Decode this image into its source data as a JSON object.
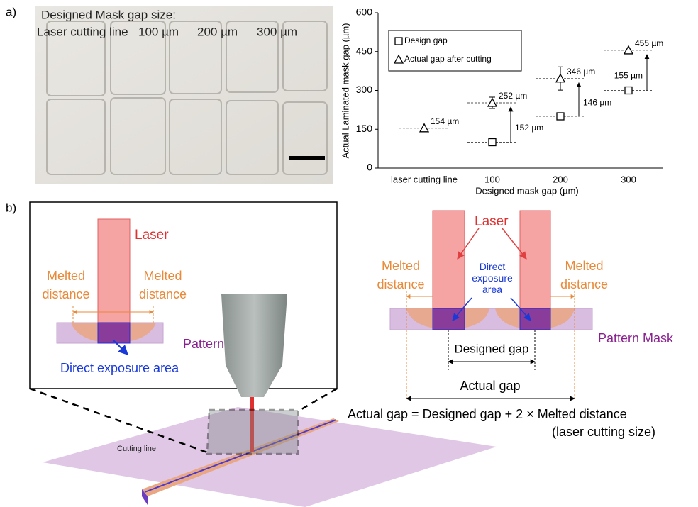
{
  "panel_labels": [
    "a)",
    "b)"
  ],
  "photo": {
    "title": "Designed Mask gap size:",
    "labels": [
      "Laser cutting line",
      "100 µm",
      "200 µm",
      "300 µm"
    ]
  },
  "chart_data": {
    "type": "scatter",
    "ylabel": "Actual Laminated mask gap (µm)",
    "xlabel": "Designed mask gap (µm)",
    "categories": [
      "laser cutting line",
      "100",
      "200",
      "300"
    ],
    "series": [
      {
        "name": "Design gap",
        "marker": "square",
        "color": "#000000",
        "values": [
          null,
          100,
          200,
          300
        ]
      },
      {
        "name": "Actual gap after cutting",
        "marker": "triangle",
        "color": "#000000",
        "values": [
          154,
          252,
          346,
          455
        ],
        "errors": [
          null,
          22,
          45,
          null
        ],
        "value_labels": [
          "154 µm",
          "252 µm",
          "346 µm",
          "455 µm"
        ]
      }
    ],
    "differences": {
      "values": [
        152,
        146,
        155
      ],
      "value_labels": [
        "152 µm",
        "146 µm",
        "155 µm"
      ]
    },
    "ylim": [
      0,
      600
    ],
    "yticks": [
      0,
      150,
      300,
      450,
      600
    ]
  },
  "left_diagram": {
    "laser": "Laser",
    "melted_left": "Melted distance",
    "melted_right": "Melted distance",
    "pattern_mask": "Pattern Mask",
    "exposure": "Direct exposure area",
    "cutting_line": "Cutting line"
  },
  "right_diagram": {
    "laser": "Laser",
    "melted_left": "Melted distance",
    "melted_right": "Melted distance",
    "exposure": "Direct exposure area",
    "pattern_mask": "Pattern Mask",
    "designed_gap": "Designed gap",
    "actual_gap": "Actual gap",
    "equation": "Actual gap = Designed gap + 2 × Melted distance",
    "equation_note": "(laser cutting size)"
  }
}
